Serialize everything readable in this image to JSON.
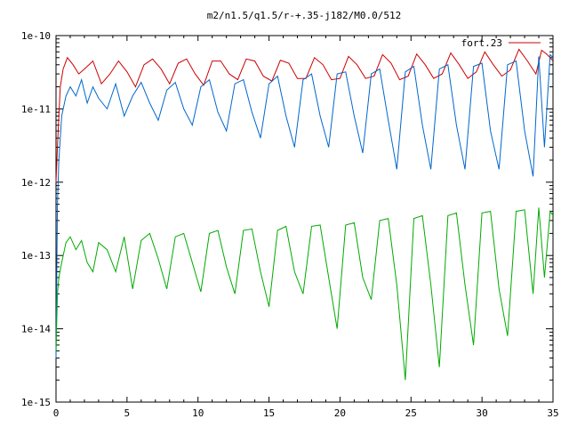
{
  "chart_data": {
    "type": "line",
    "title": "m2/n1.5/q1.5/r-+.35-j182/M0.0/512",
    "xlabel": "",
    "ylabel": "",
    "xlim": [
      0,
      35
    ],
    "ylim": [
      1e-15,
      1e-10
    ],
    "yscale": "log",
    "grid": false,
    "legend_position": "top-right",
    "x_ticks": [
      0,
      5,
      10,
      15,
      20,
      25,
      30,
      35
    ],
    "x_tick_labels": [
      "0",
      "5",
      "10",
      "15",
      "20",
      "25",
      "30",
      "35"
    ],
    "y_ticks": [
      1e-15,
      1e-14,
      1e-13,
      1e-12,
      1e-11,
      1e-10
    ],
    "y_tick_labels": [
      "1e-15",
      "1e-14",
      "1e-13",
      "1e-12",
      "1e-11",
      "1e-10"
    ],
    "series": [
      {
        "name": "fort.23",
        "color": "#cc0000",
        "x": [
          0,
          0.1,
          0.2,
          0.3,
          0.5,
          0.8,
          1.2,
          1.6,
          2.0,
          2.6,
          3.2,
          3.8,
          4.4,
          5.0,
          5.6,
          6.2,
          6.8,
          7.4,
          8.0,
          8.6,
          9.2,
          9.8,
          10.4,
          11.0,
          11.6,
          12.2,
          12.8,
          13.4,
          14.0,
          14.6,
          15.2,
          15.8,
          16.4,
          17.0,
          17.6,
          18.2,
          18.8,
          19.4,
          20.0,
          20.6,
          21.2,
          21.8,
          22.4,
          23.0,
          23.6,
          24.2,
          24.8,
          25.4,
          26.0,
          26.6,
          27.2,
          27.8,
          28.4,
          29.0,
          29.6,
          30.2,
          30.8,
          31.4,
          32.0,
          32.6,
          33.2,
          33.8,
          34.2,
          34.6,
          35.0
        ],
        "y": [
          1e-12,
          3e-12,
          8e-12,
          2e-11,
          3.5e-11,
          5e-11,
          4e-11,
          3e-11,
          3.5e-11,
          4.5e-11,
          2.2e-11,
          3e-11,
          4.5e-11,
          3.2e-11,
          2e-11,
          4e-11,
          4.8e-11,
          3.5e-11,
          2.2e-11,
          4.2e-11,
          4.8e-11,
          3e-11,
          2.1e-11,
          4.5e-11,
          4.5e-11,
          3e-11,
          2.5e-11,
          4.8e-11,
          4.5e-11,
          2.8e-11,
          2.4e-11,
          4.6e-11,
          4.2e-11,
          2.6e-11,
          2.6e-11,
          5e-11,
          4e-11,
          2.5e-11,
          2.6e-11,
          5.2e-11,
          4e-11,
          2.6e-11,
          2.8e-11,
          5.5e-11,
          4.2e-11,
          2.5e-11,
          2.8e-11,
          5.6e-11,
          4e-11,
          2.6e-11,
          3e-11,
          5.8e-11,
          4e-11,
          2.6e-11,
          3.2e-11,
          6e-11,
          4e-11,
          2.8e-11,
          3.4e-11,
          6.5e-11,
          4.5e-11,
          3e-11,
          6.3e-11,
          5.5e-11,
          4.5e-11
        ]
      },
      {
        "name": "",
        "color": "#0066cc",
        "x": [
          0,
          0.1,
          0.2,
          0.4,
          0.7,
          1.0,
          1.4,
          1.8,
          2.2,
          2.6,
          3.0,
          3.6,
          4.2,
          4.8,
          5.4,
          6.0,
          6.6,
          7.2,
          7.8,
          8.4,
          9.0,
          9.6,
          10.2,
          10.8,
          11.4,
          12.0,
          12.6,
          13.2,
          13.8,
          14.4,
          15.0,
          15.6,
          16.2,
          16.8,
          17.4,
          18.0,
          18.6,
          19.2,
          19.8,
          20.4,
          21.0,
          21.6,
          22.2,
          22.8,
          23.4,
          24.0,
          24.6,
          25.2,
          25.8,
          26.4,
          27.0,
          27.6,
          28.2,
          28.8,
          29.4,
          30.0,
          30.6,
          31.2,
          31.8,
          32.4,
          33.0,
          33.6,
          34.0,
          34.4,
          34.8,
          35.0
        ],
        "y": [
          4e-15,
          5e-13,
          2e-12,
          8e-12,
          1.5e-11,
          2e-11,
          1.5e-11,
          2.5e-11,
          1.2e-11,
          2e-11,
          1.4e-11,
          1e-11,
          2.2e-11,
          8e-12,
          1.5e-11,
          2.3e-11,
          1.2e-11,
          7e-12,
          1.8e-11,
          2.3e-11,
          1e-11,
          6e-12,
          2e-11,
          2.5e-11,
          9e-12,
          5e-12,
          2.2e-11,
          2.5e-11,
          9e-12,
          4e-12,
          2.2e-11,
          2.8e-11,
          8e-12,
          3e-12,
          2.5e-11,
          3e-11,
          8e-12,
          3e-12,
          3e-11,
          3.2e-11,
          8e-12,
          2.5e-12,
          3e-11,
          3.5e-11,
          7e-12,
          1.5e-12,
          3.2e-11,
          3.8e-11,
          6e-12,
          1.5e-12,
          3.5e-11,
          4e-11,
          6e-12,
          1.5e-12,
          3.8e-11,
          4.2e-11,
          5e-12,
          1.5e-12,
          4e-11,
          4.5e-11,
          5e-12,
          1.2e-12,
          5.2e-11,
          3e-12,
          5.5e-11,
          5e-11
        ]
      },
      {
        "name": "",
        "color": "#00aa00",
        "x": [
          0,
          0.1,
          0.2,
          0.4,
          0.7,
          1.0,
          1.4,
          1.8,
          2.2,
          2.6,
          3.0,
          3.6,
          4.2,
          4.8,
          5.4,
          6.0,
          6.6,
          7.2,
          7.8,
          8.4,
          9.0,
          9.6,
          10.2,
          10.8,
          11.4,
          12.0,
          12.6,
          13.2,
          13.8,
          14.4,
          15.0,
          15.6,
          16.2,
          16.8,
          17.4,
          18.0,
          18.6,
          19.2,
          19.8,
          20.4,
          21.0,
          21.6,
          22.2,
          22.8,
          23.4,
          24.0,
          24.6,
          25.2,
          25.8,
          26.4,
          27.0,
          27.6,
          28.2,
          28.8,
          29.4,
          30.0,
          30.6,
          31.2,
          31.8,
          32.4,
          33.0,
          33.6,
          34.0,
          34.4,
          34.8,
          35.0
        ],
        "y": [
          5e-15,
          3e-14,
          5e-14,
          8e-14,
          1.5e-13,
          1.8e-13,
          1.2e-13,
          1.6e-13,
          8e-14,
          6e-14,
          1.5e-13,
          1.2e-13,
          6e-14,
          1.8e-13,
          3.5e-14,
          1.6e-13,
          2e-13,
          9e-14,
          3.5e-14,
          1.8e-13,
          2e-13,
          8e-14,
          3.2e-14,
          2e-13,
          2.2e-13,
          7e-14,
          3e-14,
          2.2e-13,
          2.3e-13,
          6e-14,
          2e-14,
          2.2e-13,
          2.5e-13,
          6e-14,
          3e-14,
          2.5e-13,
          2.6e-13,
          5e-14,
          1e-14,
          2.6e-13,
          2.8e-13,
          5e-14,
          2.5e-14,
          3e-13,
          3.2e-13,
          4e-14,
          2e-15,
          3.2e-13,
          3.5e-13,
          4e-14,
          3e-15,
          3.5e-13,
          3.8e-13,
          4e-14,
          6e-15,
          3.8e-13,
          4e-13,
          3.5e-14,
          8e-15,
          4e-13,
          4.2e-13,
          3e-14,
          4.5e-13,
          5e-14,
          4e-13,
          3.5e-13
        ]
      }
    ]
  }
}
